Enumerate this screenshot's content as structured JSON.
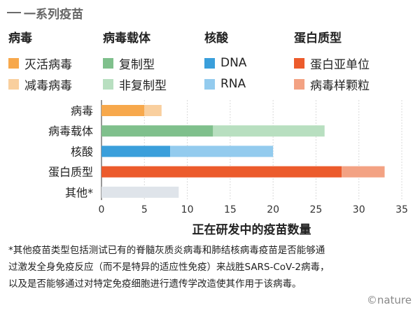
{
  "title": "一系列疫苗",
  "legend": [
    {
      "heading": "病毒",
      "items": [
        {
          "label": "灭活病毒",
          "color": "#f7a84c"
        },
        {
          "label": "减毒病毒",
          "color": "#f9cf9e"
        }
      ]
    },
    {
      "heading": "病毒载体",
      "items": [
        {
          "label": "复制型",
          "color": "#7fc08c"
        },
        {
          "label": "非复制型",
          "color": "#b8dfc0"
        }
      ]
    },
    {
      "heading": "核酸",
      "items": [
        {
          "label": "DNA",
          "color": "#3a9fdb"
        },
        {
          "label": "RNA",
          "color": "#93cbee"
        }
      ]
    },
    {
      "heading": "蛋白质型",
      "items": [
        {
          "label": "蛋白亚单位",
          "color": "#ec5b2c"
        },
        {
          "label": "病毒样颗粒",
          "color": "#f3a283"
        }
      ]
    }
  ],
  "chart_data": {
    "type": "bar",
    "orientation": "horizontal",
    "stacked": true,
    "categories": [
      "病毒",
      "病毒载体",
      "核酸",
      "蛋白质型",
      "其他*"
    ],
    "segments": [
      [
        {
          "value": 5,
          "color": "#f7a84c"
        },
        {
          "value": 2,
          "color": "#f9cf9e"
        }
      ],
      [
        {
          "value": 13,
          "color": "#7fc08c"
        },
        {
          "value": 13,
          "color": "#b8dfc0"
        }
      ],
      [
        {
          "value": 8,
          "color": "#3a9fdb"
        },
        {
          "value": 12,
          "color": "#93cbee"
        }
      ],
      [
        {
          "value": 28,
          "color": "#ec5b2c"
        },
        {
          "value": 5,
          "color": "#f3a283"
        }
      ],
      [
        {
          "value": 9,
          "color": "#dfe4ea"
        }
      ]
    ],
    "xlabel": "正在研发中的疫苗数量",
    "xlim": [
      0,
      35
    ],
    "xticks": [
      0,
      5,
      10,
      15,
      20,
      25,
      30,
      35
    ],
    "grid": true
  },
  "footnote": [
    "*其他疫苗类型包括测试已有的脊髓灰质炎病毒和肺结核病毒疫苗是否能够通",
    "过激发全身免疫反应（而不是特异的适应性免疫）来战胜SARS-CoV-2病毒，",
    "以及是否能够通过对特定免疫细胞进行遗传学改造使其作用于该病毒。"
  ],
  "credit": "©nature"
}
